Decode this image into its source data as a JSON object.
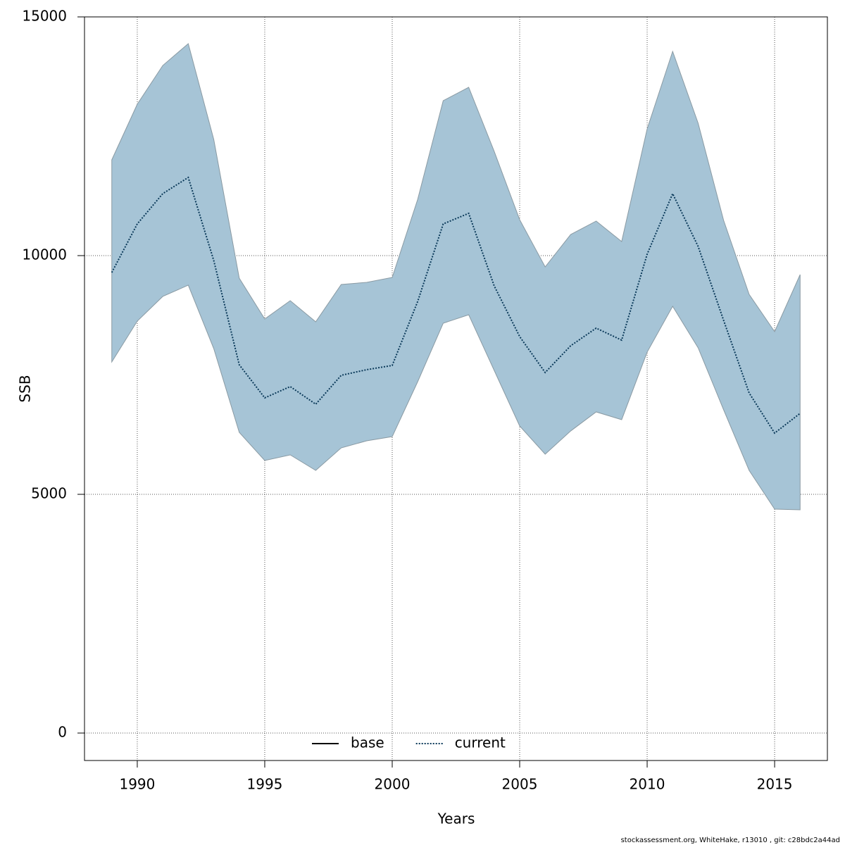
{
  "chart_data": {
    "type": "line",
    "x_label": "Years",
    "y_label": "SSB",
    "footer": "stockassessment.org, WhiteHake, r13010 , git: c28bdc2a44ad",
    "x": [
      1989,
      1990,
      1991,
      1992,
      1993,
      1994,
      1995,
      1996,
      1997,
      1998,
      1999,
      2000,
      2001,
      2002,
      2003,
      2004,
      2005,
      2006,
      2007,
      2008,
      2009,
      2010,
      2011,
      2012,
      2013,
      2014,
      2015,
      2016
    ],
    "band": {
      "color": "#a6c4d6",
      "edge": "#8a9aa3",
      "upper": [
        12006,
        13171,
        13982,
        14440,
        12434,
        9528,
        8673,
        9056,
        8614,
        9395,
        9440,
        9543,
        11180,
        13245,
        13525,
        12183,
        10752,
        9764,
        10442,
        10723,
        10295,
        12655,
        14277,
        12773,
        10737,
        9189,
        8407,
        9602
      ],
      "lower": [
        7773,
        8628,
        9145,
        9381,
        8053,
        6298,
        5708,
        5826,
        5501,
        5973,
        6121,
        6209,
        7360,
        8584,
        8761,
        7596,
        6431,
        5841,
        6327,
        6726,
        6563,
        7979,
        8938,
        8068,
        6770,
        5501,
        4690,
        4676
      ]
    },
    "series": [
      {
        "name": "base",
        "color": "#000000",
        "dash": "solid",
        "values": [
          null,
          null,
          null,
          null,
          null,
          null,
          null,
          null,
          null,
          null,
          null,
          null,
          null,
          null,
          null,
          null,
          null,
          null,
          null,
          null,
          null,
          null,
          null,
          null,
          null,
          null,
          null,
          null
        ]
      },
      {
        "name": "current",
        "color": "#0b3a5a",
        "dash": "dotted",
        "values": [
          9646,
          10664,
          11298,
          11637,
          9897,
          7714,
          7021,
          7257,
          6888,
          7493,
          7611,
          7699,
          9041,
          10664,
          10885,
          9366,
          8304,
          7552,
          8112,
          8481,
          8230,
          10029,
          11298,
          10192,
          8643,
          7124,
          6283,
          6696
        ]
      }
    ],
    "xlim": [
      1987.93,
      2017.07
    ],
    "ylim": [
      -575,
      15000
    ],
    "xticks": [
      1990,
      1995,
      2000,
      2005,
      2010,
      2015
    ],
    "yticks": [
      0,
      5000,
      10000,
      15000
    ],
    "grid": true,
    "legend": "bottom"
  }
}
